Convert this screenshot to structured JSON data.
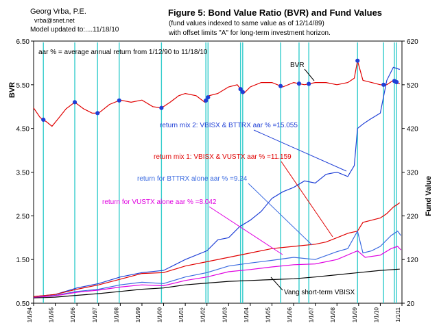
{
  "header": {
    "author": "Georg Vrba, P.E.",
    "email": "vrba@snet.net",
    "updated": "Model updated to:....11/18/10"
  },
  "chart_data": {
    "type": "line",
    "title": "Figure 5: Bond Value Ratio (BVR) and Fund Values",
    "subtitle": [
      "(fund values indexed to same value as of 12/14/89)",
      "with offset limits \"A\" for long-term investment horizon."
    ],
    "xlabel": "",
    "ylabel_left": "BVR",
    "ylabel_right": "Fund Value",
    "ylim_left": [
      0.5,
      6.5
    ],
    "ylim_right": [
      20,
      620
    ],
    "yticks_left": [
      "0.50",
      "1.50",
      "2.50",
      "3.50",
      "4.50",
      "5.50",
      "6.50"
    ],
    "yticks_right": [
      "20",
      "120",
      "220",
      "320",
      "420",
      "520",
      "620"
    ],
    "xticks": [
      "1/1/94",
      "1/1/95",
      "1/1/96",
      "1/1/97",
      "1/1/98",
      "1/1/99",
      "1/1/00",
      "1/1/01",
      "1/1/02",
      "1/1/03",
      "1/1/04",
      "1/1/05",
      "1/1/06",
      "1/1/07",
      "1/1/08",
      "1/1/09",
      "1/1/10",
      "1/1/11"
    ],
    "xlim": [
      1994.0,
      2011.0
    ],
    "grid": false,
    "annotations": [
      {
        "text": "aar % = average annual return from 1/12/90 to 11/18/10",
        "color": "#000000"
      },
      {
        "text": "BVR",
        "color": "#000000",
        "points_to": "BVR"
      },
      {
        "text": "return mix 2: VBISX & BTTRX aar % =15.055",
        "color": "#1f3fd6",
        "points_to": "return mix 2"
      },
      {
        "text": "return mix 1: VBISX & VUSTX aar % =11.159",
        "color": "#e00000",
        "points_to": "return mix 1"
      },
      {
        "text": "return for BTTRX alone aar % =9.24",
        "color": "#3a6ae0",
        "points_to": "BTTRX"
      },
      {
        "text": "return for VUSTX alone aar % =8.042",
        "color": "#e000e0",
        "points_to": "VUSTX"
      },
      {
        "text": "Vang short-term VBISX",
        "color": "#000000",
        "points_to": "VBISX"
      }
    ],
    "signal_dates": [
      1994.45,
      1995.9,
      1996.95,
      1997.95,
      1999.9,
      2001.95,
      2002.05,
      2003.55,
      2003.65,
      2005.4,
      2006.25,
      2006.7,
      2008.95,
      2010.15,
      2010.65,
      2010.75
    ],
    "series": [
      {
        "name": "BVR",
        "axis": "left",
        "color": "#e00000",
        "x": [
          1994.0,
          1994.3,
          1994.6,
          1994.85,
          1995.1,
          1995.5,
          1995.9,
          1996.3,
          1996.7,
          1997.0,
          1997.5,
          1998.0,
          1998.5,
          1999.0,
          1999.5,
          1999.9,
          2000.3,
          2000.7,
          2001.0,
          2001.5,
          2001.9,
          2002.1,
          2002.5,
          2003.0,
          2003.4,
          2003.7,
          2004.0,
          2004.5,
          2005.0,
          2005.5,
          2006.0,
          2006.5,
          2007.0,
          2007.5,
          2008.0,
          2008.5,
          2008.8,
          2008.95,
          2009.2,
          2009.6,
          2010.0,
          2010.3,
          2010.6,
          2010.9
        ],
        "values": [
          4.97,
          4.75,
          4.65,
          4.55,
          4.7,
          4.95,
          5.1,
          4.95,
          4.85,
          4.85,
          5.05,
          5.15,
          5.1,
          5.15,
          5.0,
          4.97,
          5.1,
          5.25,
          5.3,
          5.25,
          5.1,
          5.25,
          5.3,
          5.45,
          5.5,
          5.3,
          5.45,
          5.55,
          5.55,
          5.45,
          5.55,
          5.5,
          5.55,
          5.55,
          5.5,
          5.55,
          5.65,
          6.05,
          5.6,
          5.55,
          5.5,
          5.5,
          5.6,
          5.52
        ]
      },
      {
        "name": "return mix 2",
        "axis": "right",
        "color": "#1f3fd6",
        "x": [
          1994.0,
          1995.0,
          1996.0,
          1997.0,
          1998.0,
          1999.0,
          2000.0,
          2001.0,
          2002.0,
          2002.5,
          2003.0,
          2003.5,
          2004.0,
          2004.5,
          2005.0,
          2005.5,
          2006.0,
          2006.5,
          2007.0,
          2007.5,
          2008.0,
          2008.5,
          2008.8,
          2008.95,
          2009.2,
          2009.5,
          2010.0,
          2010.3,
          2010.6,
          2010.9
        ],
        "values": [
          35,
          40,
          55,
          65,
          80,
          90,
          95,
          120,
          140,
          165,
          170,
          195,
          210,
          230,
          260,
          275,
          285,
          300,
          295,
          315,
          320,
          310,
          335,
          420,
          430,
          440,
          455,
          530,
          560,
          555
        ]
      },
      {
        "name": "return mix 1",
        "axis": "right",
        "color": "#e00000",
        "x": [
          1994.0,
          1995.0,
          1996.0,
          1997.0,
          1998.0,
          1999.0,
          2000.0,
          2001.0,
          2002.0,
          2003.0,
          2004.0,
          2005.0,
          2006.0,
          2007.0,
          2007.5,
          2008.0,
          2008.5,
          2008.95,
          2009.2,
          2009.6,
          2010.0,
          2010.3,
          2010.6,
          2010.9
        ],
        "values": [
          35,
          40,
          52,
          62,
          75,
          88,
          90,
          105,
          115,
          125,
          135,
          145,
          150,
          155,
          160,
          170,
          180,
          185,
          205,
          210,
          215,
          225,
          240,
          250
        ]
      },
      {
        "name": "BTTRX",
        "axis": "right",
        "color": "#3a6ae0",
        "x": [
          1994.0,
          1995.0,
          1996.0,
          1997.0,
          1998.0,
          1999.0,
          2000.0,
          2001.0,
          2002.0,
          2003.0,
          2004.0,
          2005.0,
          2006.0,
          2007.0,
          2008.0,
          2008.5,
          2008.95,
          2009.2,
          2009.6,
          2010.0,
          2010.5,
          2010.8,
          2010.95
        ],
        "values": [
          33,
          38,
          47,
          52,
          62,
          68,
          65,
          80,
          90,
          105,
          112,
          118,
          125,
          120,
          138,
          145,
          185,
          135,
          140,
          150,
          175,
          185,
          175
        ]
      },
      {
        "name": "VUSTX",
        "axis": "right",
        "color": "#e000e0",
        "x": [
          1994.0,
          1995.0,
          1996.0,
          1997.0,
          1998.0,
          1999.0,
          2000.0,
          2001.0,
          2002.0,
          2003.0,
          2004.0,
          2005.0,
          2006.0,
          2007.0,
          2008.0,
          2008.95,
          2009.3,
          2010.0,
          2010.5,
          2010.8,
          2010.95
        ],
        "values": [
          33,
          37,
          45,
          50,
          57,
          62,
          60,
          72,
          80,
          92,
          97,
          103,
          108,
          110,
          120,
          140,
          125,
          130,
          145,
          150,
          142
        ]
      },
      {
        "name": "VBISX",
        "axis": "right",
        "color": "#000000",
        "x": [
          1994.0,
          1995.0,
          1996.0,
          1997.0,
          1998.0,
          1999.0,
          2000.0,
          2001.0,
          2002.0,
          2003.0,
          2004.0,
          2005.0,
          2006.0,
          2007.0,
          2008.0,
          2009.0,
          2010.0,
          2010.9
        ],
        "values": [
          32,
          34,
          38,
          42,
          47,
          52,
          55,
          62,
          66,
          70,
          72,
          74,
          76,
          80,
          85,
          90,
          95,
          98
        ]
      }
    ]
  }
}
